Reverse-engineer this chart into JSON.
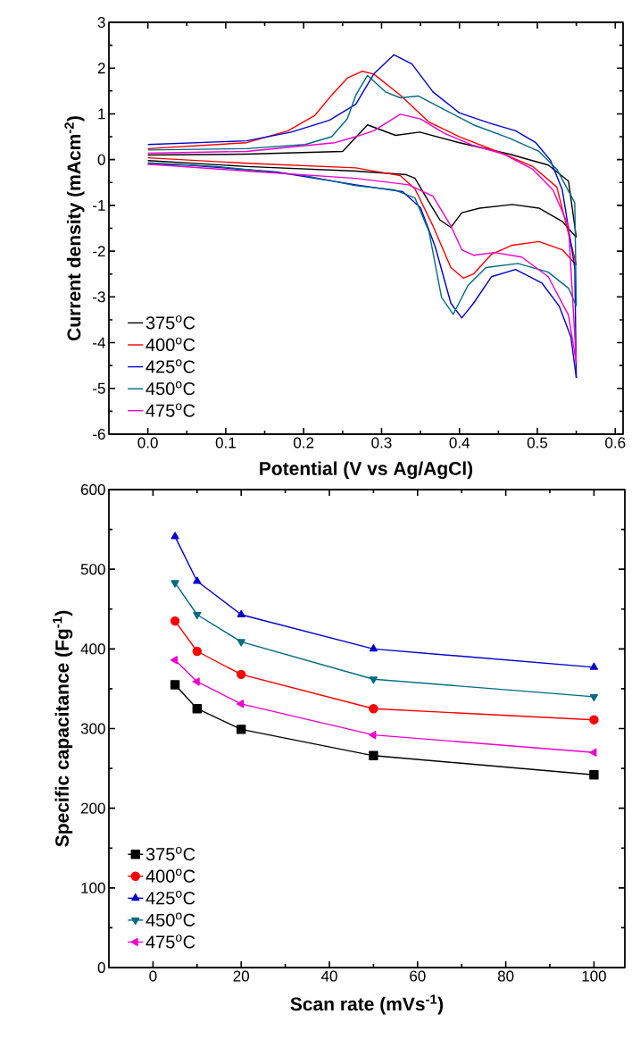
{
  "chart_data": [
    {
      "type": "line",
      "xlabel": "Potential (V vs Ag/AgCl)",
      "ylabel": "Current density (mAcm$^{-2}$)",
      "xlim": [
        -0.05,
        0.61
      ],
      "ylim": [
        -6,
        3
      ],
      "xticks": [
        {
          "value": 0,
          "label": "0.0"
        },
        {
          "value": 0.1,
          "label": "0.1"
        },
        {
          "value": 0.2,
          "label": "0.2"
        },
        {
          "value": 0.3,
          "label": "0.3"
        },
        {
          "value": 0.4,
          "label": "0.4"
        },
        {
          "value": 0.5,
          "label": "0.5"
        },
        {
          "value": 0.6,
          "label": "0.6"
        }
      ],
      "yticks": [
        -6,
        -5,
        -4,
        -3,
        -2,
        -1,
        0,
        1,
        2,
        3
      ],
      "legend": "bottom left",
      "grid": false,
      "marker": "none",
      "line_style": "solid",
      "series": [
        {
          "name": "375$^{o}$C",
          "color": "#000000",
          "x": [
            0,
            0.127,
            0.25,
            0.282,
            0.318,
            0.349,
            0.4,
            0.464,
            0.514,
            0.54,
            0.55
          ],
          "values": [
            0.1,
            0.12,
            0.18,
            0.76,
            0.53,
            0.6,
            0.37,
            0.12,
            -0.12,
            -0.47,
            -1.7
          ]
        },
        {
          "color": "#000000",
          "x": [
            0,
            0.127,
            0.267,
            0.332,
            0.343,
            0.361,
            0.375,
            0.389,
            0.403,
            0.426,
            0.468,
            0.502,
            0.532,
            0.55
          ],
          "values": [
            -0.02,
            -0.15,
            -0.25,
            -0.33,
            -0.41,
            -0.93,
            -1.32,
            -1.48,
            -1.16,
            -1.06,
            -0.98,
            -1.06,
            -1.35,
            -1.7
          ]
        },
        {
          "name": "400$^{o}$C",
          "color": "#ff0000",
          "x": [
            0,
            0.127,
            0.18,
            0.214,
            0.236,
            0.256,
            0.275,
            0.29,
            0.324,
            0.361,
            0.4,
            0.457,
            0.494,
            0.525,
            0.55
          ],
          "values": [
            0.24,
            0.37,
            0.63,
            0.96,
            1.41,
            1.78,
            1.93,
            1.87,
            1.41,
            0.82,
            0.5,
            0.12,
            -0.15,
            -0.6,
            -2.3
          ]
        },
        {
          "color": "#ff0000",
          "x": [
            0,
            0.127,
            0.267,
            0.324,
            0.343,
            0.366,
            0.389,
            0.405,
            0.418,
            0.441,
            0.468,
            0.502,
            0.532,
            0.55
          ],
          "values": [
            0.04,
            -0.08,
            -0.18,
            -0.35,
            -0.64,
            -1.45,
            -2.36,
            -2.59,
            -2.5,
            -2.07,
            -1.87,
            -1.79,
            -1.97,
            -2.3
          ]
        },
        {
          "name": "425$^{o}$C",
          "color": "#0000cc",
          "x": [
            0,
            0.127,
            0.184,
            0.233,
            0.267,
            0.29,
            0.316,
            0.339,
            0.366,
            0.4,
            0.438,
            0.472,
            0.498,
            0.517,
            0.532,
            0.548,
            0.55
          ],
          "values": [
            0.33,
            0.41,
            0.6,
            0.86,
            1.21,
            1.87,
            2.29,
            2.09,
            1.48,
            1.02,
            0.8,
            0.63,
            0.37,
            -0.02,
            -0.66,
            -2.36,
            -4.77
          ]
        },
        {
          "color": "#0000cc",
          "x": [
            0,
            0.051,
            0.165,
            0.267,
            0.327,
            0.35,
            0.369,
            0.389,
            0.403,
            0.418,
            0.441,
            0.472,
            0.506,
            0.528,
            0.543,
            0.55
          ],
          "values": [
            -0.1,
            -0.12,
            -0.27,
            -0.55,
            -0.7,
            -1.05,
            -1.91,
            -3.14,
            -3.46,
            -3.14,
            -2.56,
            -2.4,
            -2.7,
            -3.2,
            -3.87,
            -4.77
          ]
        },
        {
          "name": "450$^{o}$C",
          "color": "#006a80",
          "x": [
            0,
            0.127,
            0.202,
            0.236,
            0.256,
            0.267,
            0.282,
            0.305,
            0.324,
            0.347,
            0.381,
            0.418,
            0.464,
            0.502,
            0.525,
            0.548,
            0.55
          ],
          "values": [
            0.21,
            0.24,
            0.33,
            0.5,
            0.89,
            1.41,
            1.84,
            1.48,
            1.35,
            1.39,
            1.09,
            0.76,
            0.47,
            0.18,
            -0.21,
            -0.94,
            -3.2
          ]
        },
        {
          "color": "#006a80",
          "x": [
            0,
            0.089,
            0.202,
            0.267,
            0.316,
            0.343,
            0.361,
            0.377,
            0.392,
            0.411,
            0.434,
            0.475,
            0.514,
            0.54,
            0.55
          ],
          "values": [
            -0.07,
            -0.15,
            -0.35,
            -0.57,
            -0.66,
            -0.84,
            -1.58,
            -3.01,
            -3.38,
            -2.75,
            -2.36,
            -2.27,
            -2.46,
            -2.81,
            -3.2
          ]
        },
        {
          "name": "475$^{o}$C",
          "color": "#ee00cc",
          "x": [
            0,
            0.127,
            0.24,
            0.267,
            0.29,
            0.324,
            0.35,
            0.381,
            0.418,
            0.457,
            0.494,
            0.52,
            0.54,
            0.55
          ],
          "values": [
            0.14,
            0.18,
            0.37,
            0.5,
            0.63,
            0.99,
            0.89,
            0.57,
            0.31,
            0.12,
            -0.21,
            -0.66,
            -1.45,
            -4.45
          ]
        },
        {
          "color": "#ee00cc",
          "x": [
            0,
            0.127,
            0.267,
            0.335,
            0.366,
            0.389,
            0.403,
            0.418,
            0.445,
            0.48,
            0.514,
            0.54,
            0.55
          ],
          "values": [
            -0.1,
            -0.25,
            -0.41,
            -0.55,
            -0.8,
            -1.45,
            -1.97,
            -2.09,
            -2.03,
            -2.13,
            -2.56,
            -3.4,
            -4.45
          ]
        }
      ]
    },
    {
      "type": "line",
      "xlabel": "Scan rate (mVs$^{-1}$)",
      "ylabel": "Specific capacitance (Fg$^{-1}$)",
      "xlim": [
        -10,
        107
      ],
      "ylim": [
        0,
        600
      ],
      "xticks": [
        0,
        20,
        40,
        60,
        80,
        100
      ],
      "yticks": [
        0,
        100,
        200,
        300,
        400,
        500,
        600
      ],
      "legend": "bottom left",
      "grid": false,
      "line_style": "solid",
      "x": [
        5,
        10,
        20,
        50,
        100
      ],
      "series": [
        {
          "name": "375$^{o}$C",
          "color": "#000000",
          "marker": "square",
          "values": [
            355,
            325,
            299,
            266,
            242
          ]
        },
        {
          "name": "400$^{o}$C",
          "color": "#ff0000",
          "marker": "circle",
          "values": [
            435,
            397,
            368,
            325,
            311
          ]
        },
        {
          "name": "425$^{o}$C",
          "color": "#0000cc",
          "marker": "triangle",
          "values": [
            541,
            485,
            443,
            400,
            377
          ]
        },
        {
          "name": "450$^{o}$C",
          "color": "#006a80",
          "marker": "triangle-down",
          "values": [
            483,
            443,
            409,
            362,
            340
          ]
        },
        {
          "name": "475$^{o}$C",
          "color": "#ee00cc",
          "marker": "triangle-left",
          "values": [
            386,
            359,
            331,
            292,
            270
          ]
        }
      ]
    }
  ]
}
